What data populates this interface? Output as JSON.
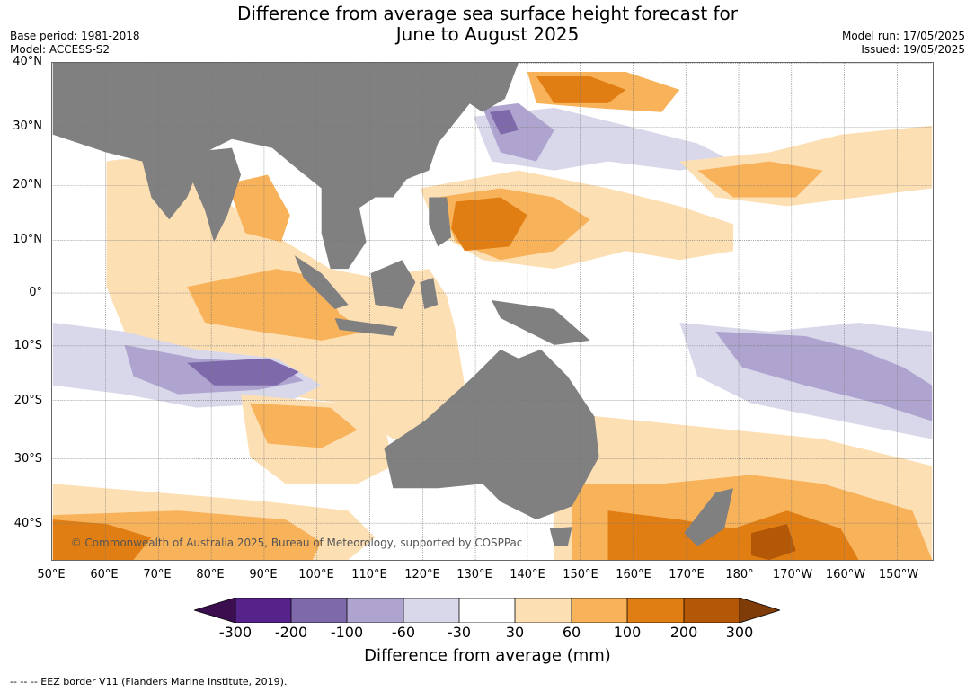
{
  "title_line1": "Difference from average sea surface height forecast for",
  "title_line2": "June to August 2025",
  "base_period": "Base period: 1981-2018",
  "model": "Model: ACCESS-S2",
  "model_run": "Model run: 17/05/2025",
  "issued": "Issued: 19/05/2025",
  "copyright": "© Commonwealth of Australia 2025, Bureau of Meteorology, supported by COSPPac",
  "lat_labels": [
    "40°N",
    "30°N",
    "20°N",
    "10°N",
    "0°",
    "10°S",
    "20°S",
    "30°S",
    "40°S"
  ],
  "lon_labels": [
    "50°E",
    "60°E",
    "70°E",
    "80°E",
    "90°E",
    "100°E",
    "110°E",
    "120°E",
    "130°E",
    "140°E",
    "150°E",
    "160°E",
    "170°E",
    "180°",
    "170°W",
    "160°W",
    "150°W"
  ],
  "colorbar": {
    "title": "Difference from average (mm)",
    "labels": [
      "-300",
      "-200",
      "-100",
      "-60",
      "-30",
      "30",
      "60",
      "100",
      "200",
      "300"
    ],
    "colors": [
      "#3b0f4f",
      "#56238a",
      "#7e6aab",
      "#aea4cf",
      "#d8d8ea",
      "#ffffff",
      "#fddfb4",
      "#f8b259",
      "#e07e13",
      "#b35806",
      "#7f3b08"
    ]
  },
  "colors": {
    "land": "#808080",
    "ocean": "#ffffff",
    "grid": "#777777"
  },
  "footnote": "--  --  -- EEZ border V11 (Flanders Marine Institute, 2019)."
}
